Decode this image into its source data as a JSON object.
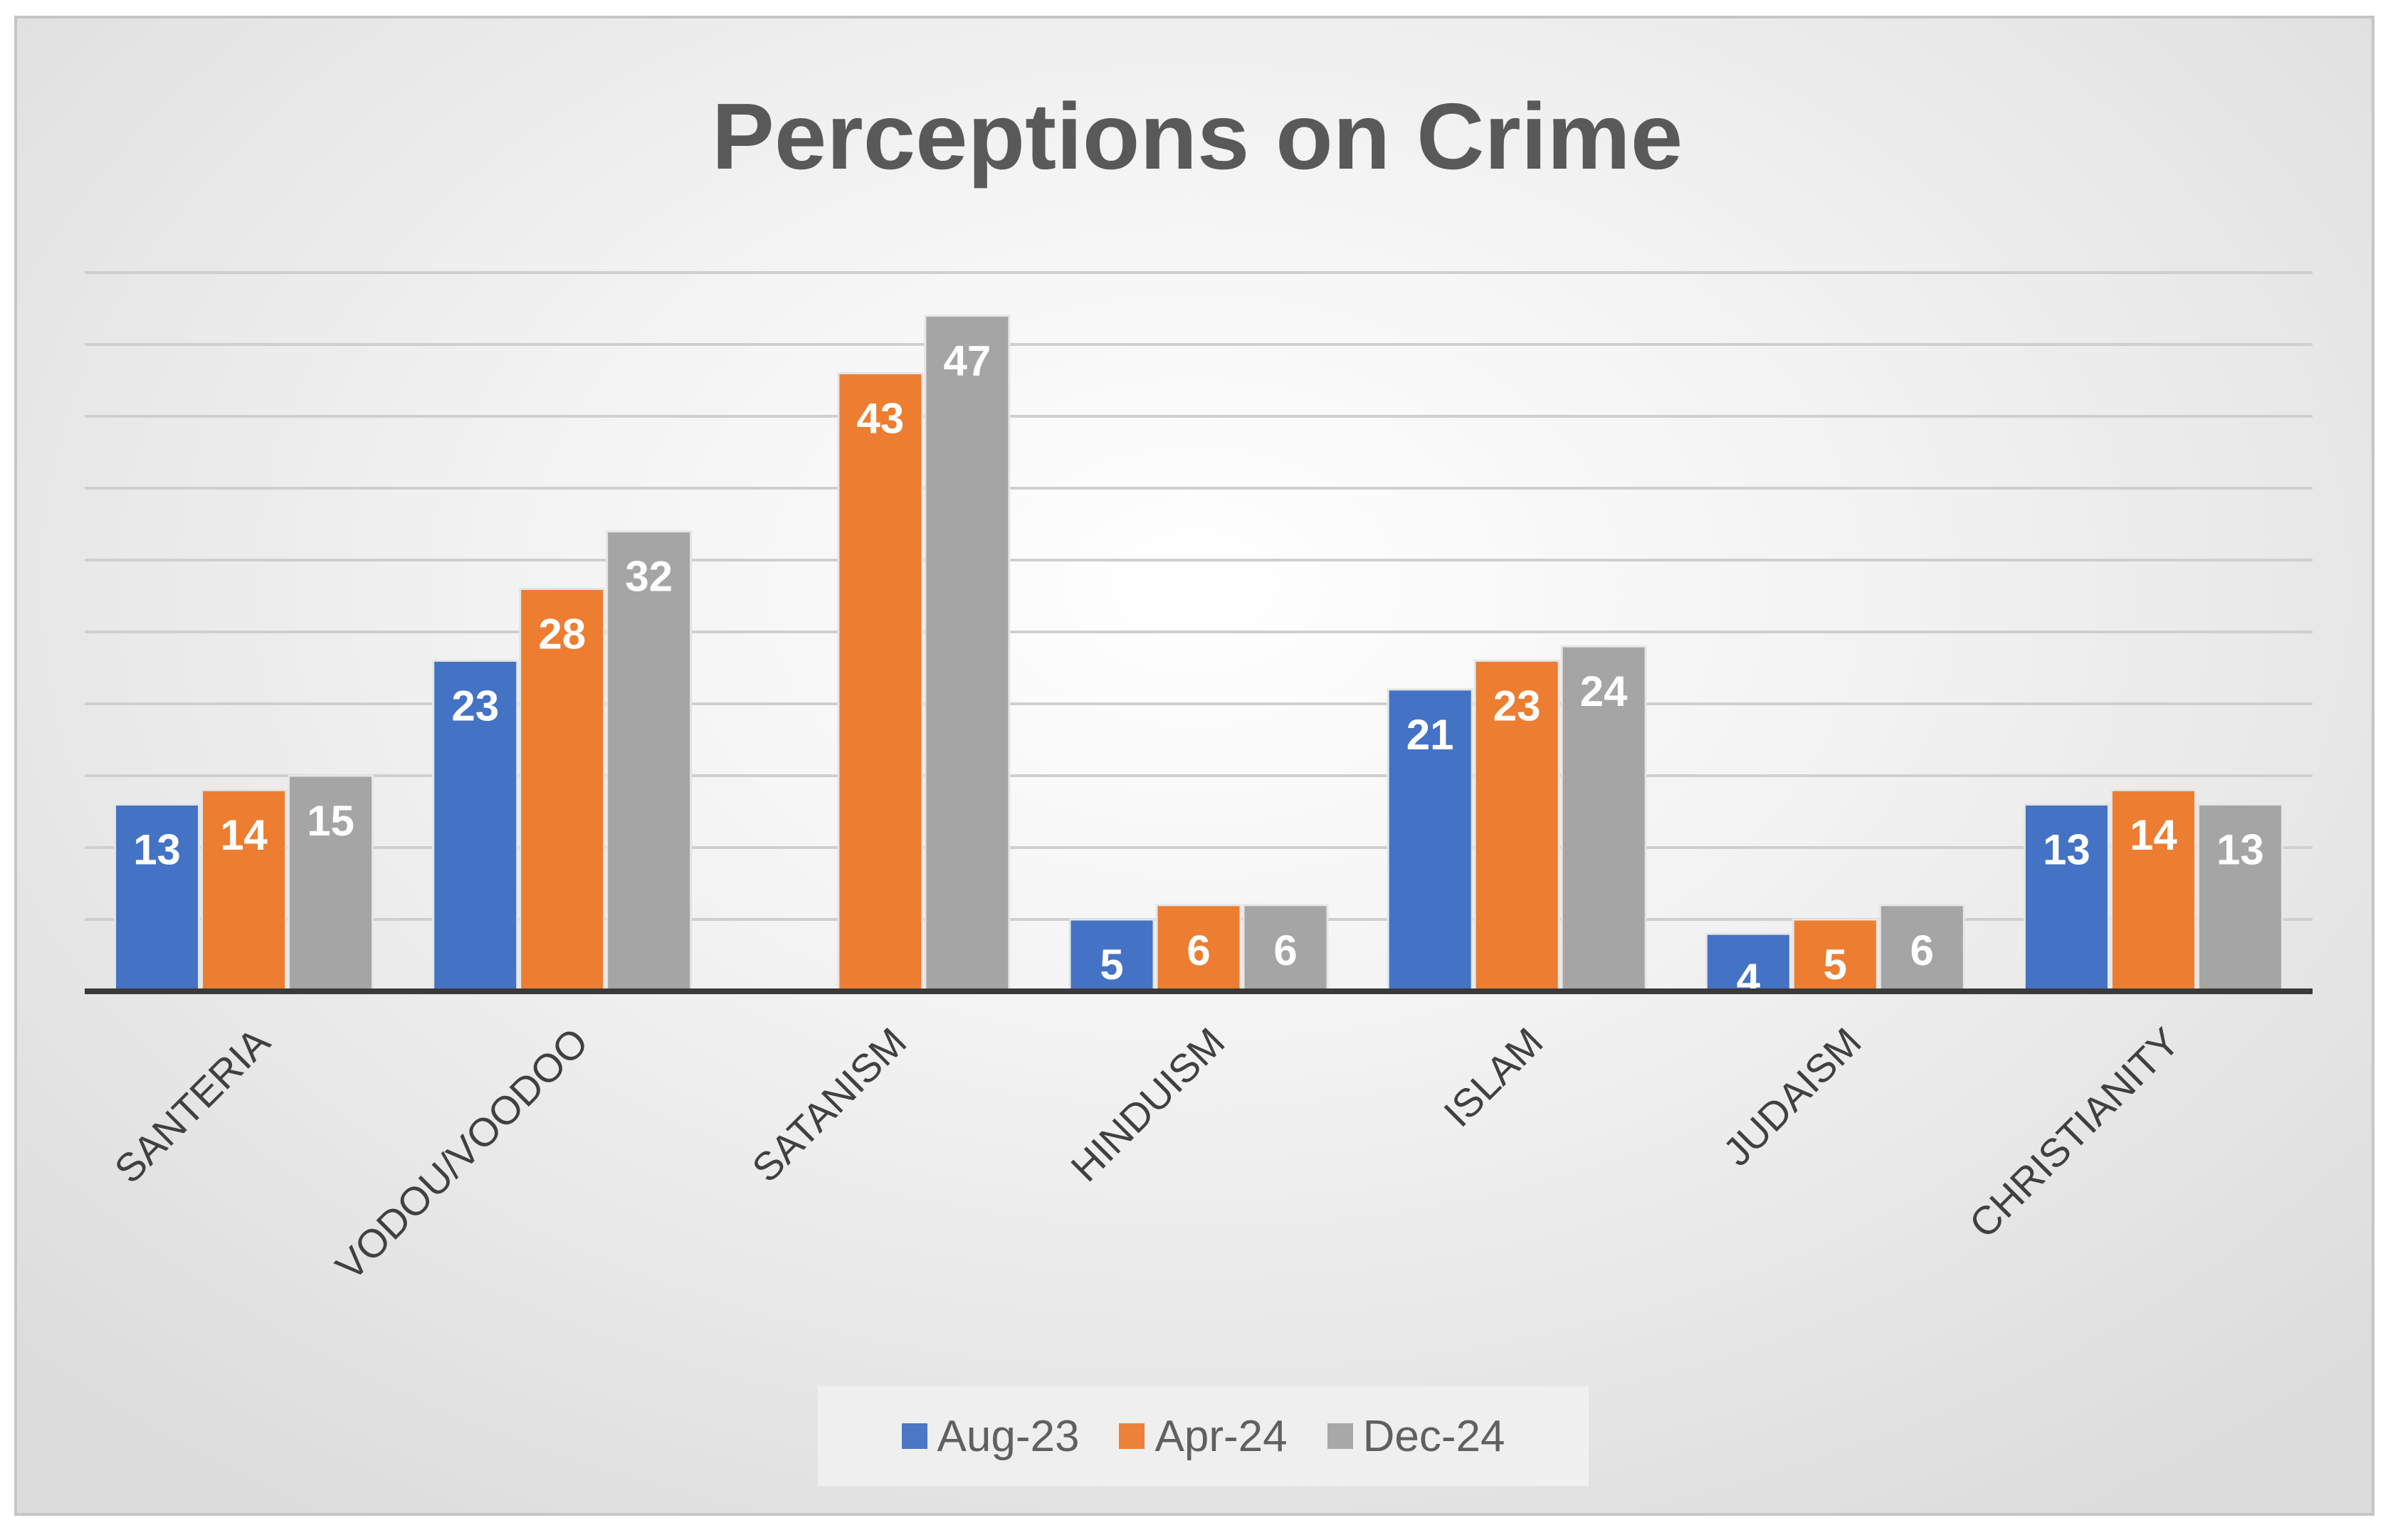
{
  "chart_data": {
    "type": "bar",
    "title": "Perceptions on Crime",
    "categories": [
      "SANTERIA",
      "VODOU/VOODOO",
      "SATANISM",
      "HINDUISM",
      "ISLAM",
      "JUDAISM",
      "CHRISTIANITY"
    ],
    "series": [
      {
        "name": "Aug-23",
        "color": "#4472c4",
        "values": [
          13,
          23,
          null,
          5,
          21,
          4,
          13
        ]
      },
      {
        "name": "Apr-24",
        "color": "#ed7d31",
        "values": [
          14,
          28,
          43,
          6,
          23,
          5,
          14
        ]
      },
      {
        "name": "Dec-24",
        "color": "#a5a5a5",
        "values": [
          15,
          32,
          47,
          6,
          24,
          6,
          13
        ]
      }
    ],
    "ylim": [
      0,
      50
    ],
    "grid": true,
    "data_labels": true,
    "legend_position": "bottom",
    "y_axis_labels_shown": false
  }
}
